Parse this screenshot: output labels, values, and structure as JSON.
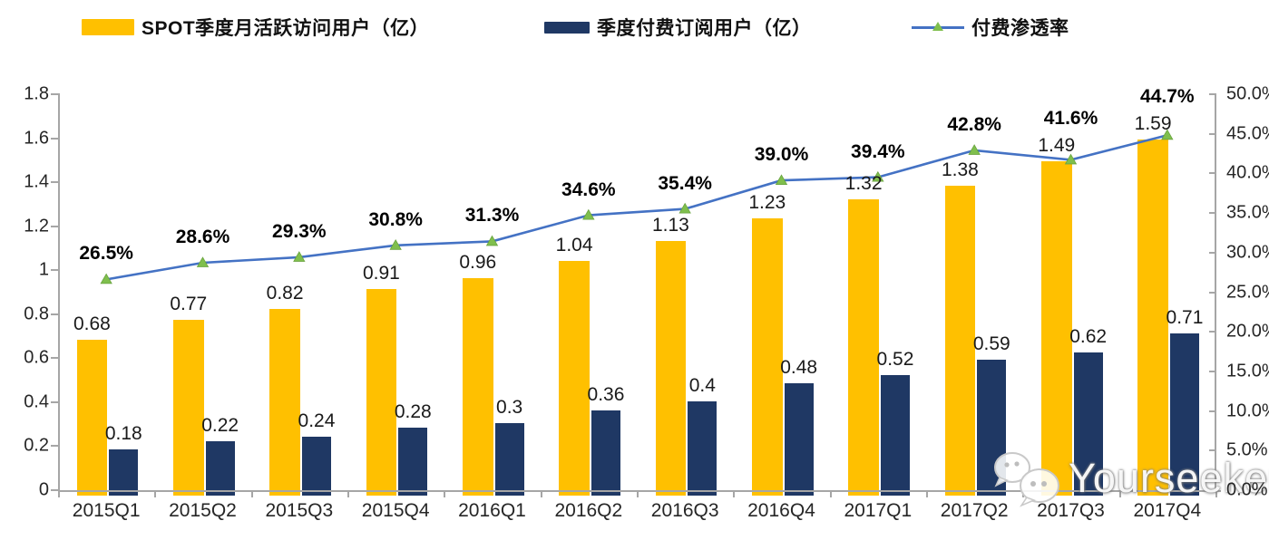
{
  "legend": {
    "items": [
      {
        "label": "SPOT季度月活跃访问用户（亿）",
        "swatch": "bar",
        "color": "#FFC000"
      },
      {
        "label": "季度付费订阅用户（亿）",
        "swatch": "bar",
        "color": "#1F3864"
      },
      {
        "label": "付费渗透率",
        "swatch": "line-triangle",
        "line_color": "#4472C4",
        "marker_color": "#7FBF4D"
      }
    ]
  },
  "chart_data": {
    "type": "bar",
    "title": "",
    "categories": [
      "2015Q1",
      "2015Q2",
      "2015Q3",
      "2015Q4",
      "2016Q1",
      "2016Q2",
      "2016Q3",
      "2016Q4",
      "2017Q1",
      "2017Q2",
      "2017Q3",
      "2017Q4"
    ],
    "series": [
      {
        "name": "SPOT季度月活跃访问用户（亿）",
        "type": "bar",
        "axis": "left",
        "color": "#FFC000",
        "values": [
          0.68,
          0.77,
          0.82,
          0.91,
          0.96,
          1.04,
          1.13,
          1.23,
          1.32,
          1.38,
          1.49,
          1.59
        ],
        "labels": [
          "0.68",
          "0.77",
          "0.82",
          "0.91",
          "0.96",
          "1.04",
          "1.13",
          "1.23",
          "1.32",
          "1.38",
          "1.49",
          "1.59"
        ]
      },
      {
        "name": "季度付费订阅用户（亿）",
        "type": "bar",
        "axis": "left",
        "color": "#1F3864",
        "values": [
          0.18,
          0.22,
          0.24,
          0.28,
          0.3,
          0.36,
          0.4,
          0.48,
          0.52,
          0.59,
          0.62,
          0.71
        ],
        "labels": [
          "0.18",
          "0.22",
          "0.24",
          "0.28",
          "0.3",
          "0.36",
          "0.4",
          "0.48",
          "0.52",
          "0.59",
          "0.62",
          "0.71"
        ]
      },
      {
        "name": "付费渗透率",
        "type": "line",
        "axis": "right",
        "color": "#4472C4",
        "marker": "triangle",
        "marker_color": "#7FBF4D",
        "values": [
          26.5,
          28.6,
          29.3,
          30.8,
          31.3,
          34.6,
          35.4,
          39.0,
          39.4,
          42.8,
          41.6,
          44.7
        ],
        "labels": [
          "26.5%",
          "28.6%",
          "29.3%",
          "30.8%",
          "31.3%",
          "34.6%",
          "35.4%",
          "39.0%",
          "39.4%",
          "42.8%",
          "41.6%",
          "44.7%"
        ]
      }
    ],
    "left_axis": {
      "min": 0,
      "max": 1.8,
      "step": 0.2,
      "tick_labels": [
        "0",
        "0.2",
        "0.4",
        "0.6",
        "0.8",
        "1",
        "1.2",
        "1.4",
        "1.6",
        "1.8"
      ]
    },
    "right_axis": {
      "min": 0,
      "max": 50,
      "step": 5,
      "tick_labels": [
        "0.0%",
        "5.0%",
        "10.0%",
        "15.0%",
        "20.0%",
        "25.0%",
        "30.0%",
        "35.0%",
        "40.0%",
        "45.0%",
        "50.0%"
      ]
    },
    "legend_position": "top",
    "grid": false
  },
  "watermark": {
    "text": "Yourseeker",
    "icon": "chat-bubbles-icon"
  }
}
